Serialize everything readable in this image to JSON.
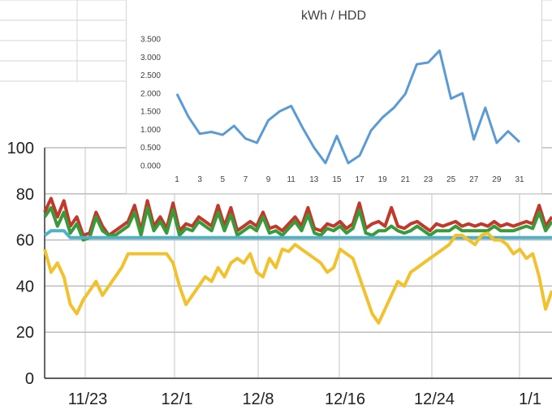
{
  "chart_data": [
    {
      "type": "line",
      "title": "",
      "xlabel": "",
      "ylabel": "",
      "ylim": [
        0,
        100
      ],
      "yticks": [
        0,
        20,
        40,
        60,
        80,
        100
      ],
      "xtick_labels": [
        "11/23",
        "12/1",
        "12/8",
        "12/16",
        "12/24",
        "1/1"
      ],
      "grid": true,
      "series": [
        {
          "color": "#c0392b",
          "values": [
            72,
            78,
            70,
            77,
            66,
            70,
            62,
            63,
            72,
            66,
            62,
            64,
            66,
            68,
            75,
            64,
            77,
            66,
            70,
            65,
            76,
            64,
            67,
            66,
            70,
            68,
            66,
            75,
            66,
            74,
            64,
            66,
            68,
            66,
            72,
            65,
            66,
            64,
            67,
            70,
            66,
            74,
            65,
            64,
            67,
            66,
            68,
            65,
            67,
            76,
            65,
            67,
            68,
            66,
            74,
            66,
            65,
            67,
            68,
            66,
            64,
            67,
            66,
            67,
            68,
            66,
            67,
            66,
            67,
            66,
            68,
            66,
            67,
            66,
            67,
            68,
            67,
            75,
            66,
            70
          ]
        },
        {
          "color": "#3a9a3a",
          "values": [
            70,
            74,
            66,
            72,
            63,
            67,
            60,
            61,
            70,
            64,
            62,
            62,
            64,
            66,
            72,
            62,
            74,
            64,
            68,
            63,
            73,
            62,
            65,
            64,
            68,
            66,
            64,
            72,
            64,
            71,
            62,
            64,
            66,
            64,
            70,
            63,
            64,
            62,
            65,
            68,
            64,
            71,
            63,
            62,
            65,
            64,
            66,
            63,
            65,
            73,
            63,
            62,
            64,
            64,
            66,
            64,
            63,
            64,
            66,
            64,
            62,
            64,
            64,
            64,
            66,
            64,
            64,
            64,
            64,
            64,
            66,
            64,
            64,
            64,
            65,
            66,
            65,
            72,
            64,
            68
          ]
        },
        {
          "color": "#4fb0c6",
          "values": [
            62,
            64,
            64,
            64,
            61,
            61,
            61,
            61,
            61,
            61,
            61,
            61,
            61,
            61,
            61,
            61,
            61,
            61,
            61,
            61,
            61,
            61,
            61,
            61,
            61,
            61,
            61,
            61,
            61,
            61,
            61,
            61,
            61,
            61,
            61,
            61,
            61,
            61,
            61,
            61,
            61,
            61,
            61,
            61,
            61,
            61,
            61,
            61,
            61,
            61,
            61,
            61,
            61,
            61,
            61,
            61,
            61,
            61,
            61,
            61,
            61,
            61,
            61,
            61,
            61,
            61,
            61,
            61,
            61,
            61,
            61,
            61,
            61,
            61,
            61,
            61,
            61,
            61,
            61,
            61
          ]
        },
        {
          "color": "#f2c12e",
          "values": [
            56,
            46,
            50,
            44,
            32,
            28,
            34,
            38,
            42,
            36,
            40,
            44,
            48,
            54,
            54,
            54,
            54,
            54,
            54,
            54,
            50,
            40,
            32,
            36,
            40,
            44,
            42,
            48,
            44,
            50,
            52,
            50,
            54,
            46,
            44,
            52,
            48,
            56,
            55,
            58,
            56,
            54,
            52,
            50,
            46,
            48,
            56,
            54,
            52,
            44,
            36,
            28,
            24,
            30,
            36,
            42,
            40,
            46,
            48,
            50,
            52,
            54,
            56,
            58,
            62,
            62,
            60,
            58,
            62,
            63,
            60,
            60,
            58,
            54,
            56,
            52,
            54,
            44,
            30,
            38
          ]
        }
      ]
    },
    {
      "type": "line",
      "title": "kWh / HDD",
      "xlabel": "",
      "ylabel": "",
      "ylim": [
        0,
        3.5
      ],
      "ytick_labels": [
        "0.000",
        "0.500",
        "1.000",
        "1.500",
        "2.000",
        "2.500",
        "3.000",
        "3.500"
      ],
      "x": [
        1,
        2,
        3,
        4,
        5,
        6,
        7,
        8,
        9,
        10,
        11,
        12,
        13,
        14,
        15,
        16,
        17,
        18,
        19,
        20,
        21,
        22,
        23,
        24,
        25,
        26,
        27,
        28,
        29,
        30,
        31
      ],
      "xtick_labels": [
        "1",
        "3",
        "5",
        "7",
        "9",
        "11",
        "13",
        "15",
        "17",
        "19",
        "21",
        "23",
        "25",
        "27",
        "29",
        "31"
      ],
      "series": [
        {
          "color": "#5b9bd5",
          "values": [
            1.98,
            1.35,
            0.88,
            0.93,
            0.85,
            1.1,
            0.75,
            0.63,
            1.25,
            1.5,
            1.65,
            1.05,
            0.5,
            0.07,
            0.82,
            0.07,
            0.28,
            0.97,
            1.33,
            1.6,
            1.98,
            2.8,
            2.85,
            3.18,
            1.85,
            2.0,
            0.72,
            1.6,
            0.63,
            0.95,
            0.65
          ]
        }
      ]
    }
  ]
}
